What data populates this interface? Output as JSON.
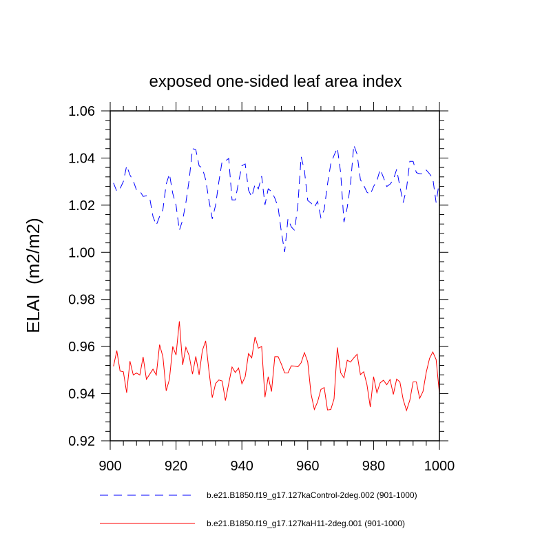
{
  "chart_data": {
    "type": "line",
    "title": "exposed one-sided leaf area index",
    "xlabel": "",
    "ylabel": "ELAI  (m2/m2)",
    "xlim": [
      900,
      1000
    ],
    "ylim": [
      0.92,
      1.06
    ],
    "xticks": [
      "900",
      "920",
      "940",
      "960",
      "980",
      "1000"
    ],
    "yticks": [
      "0.92",
      "0.94",
      "0.96",
      "0.98",
      "1.00",
      "1.02",
      "1.04",
      "1.06"
    ],
    "grid": false,
    "legend_position": "bottom",
    "x_start": 901,
    "x_step": 1,
    "series": [
      {
        "name": "b.e21.B1850.f19_g17.127kaControl-2deg.002 (901-1000)",
        "color": "#0000ff",
        "style": "dashed",
        "values": [
          1.0294,
          1.0258,
          1.027,
          1.03,
          1.0367,
          1.0328,
          1.0303,
          1.0264,
          1.026,
          1.0237,
          1.024,
          1.023,
          1.0152,
          1.0115,
          1.0152,
          1.0181,
          1.0289,
          1.0333,
          1.025,
          1.02,
          1.0093,
          1.0137,
          1.0211,
          1.0308,
          1.044,
          1.0435,
          1.0367,
          1.0357,
          1.0308,
          1.022,
          1.0142,
          1.02,
          1.0298,
          1.0386,
          1.0388,
          1.0398,
          1.0222,
          1.0222,
          1.0298,
          1.0367,
          1.0375,
          1.0264,
          1.0235,
          1.0289,
          1.0269,
          1.0323,
          1.0201,
          1.0269,
          1.0258,
          1.023,
          1.0191,
          1.0084,
          1.0001,
          1.0142,
          1.0108,
          1.0093,
          1.0201,
          1.0406,
          1.0347,
          1.022,
          1.0209,
          1.0191,
          1.0216,
          1.0147,
          1.0181,
          1.0289,
          1.0377,
          1.0411,
          1.0443,
          1.0338,
          1.0128,
          1.0191,
          1.0289,
          1.0455,
          1.0416,
          1.0308,
          1.0284,
          1.0255,
          1.0245,
          1.0279,
          1.0303,
          1.0352,
          1.0318,
          1.0279,
          1.0289,
          1.0308,
          1.0352,
          1.0279,
          1.0211,
          1.0269,
          1.0386,
          1.0386,
          1.0338,
          1.0333,
          1.0333,
          1.0349,
          1.0333,
          1.0313,
          1.0211,
          1.0303
        ]
      },
      {
        "name": "b.e21.B1850.f19_g17.127kaH11-2deg.001 (901-1000)",
        "color": "#ff0000",
        "style": "solid",
        "values": [
          0.9516,
          0.9583,
          0.9496,
          0.9493,
          0.9404,
          0.9538,
          0.9479,
          0.9488,
          0.9479,
          0.9556,
          0.9461,
          0.9483,
          0.9504,
          0.9479,
          0.9608,
          0.9557,
          0.9412,
          0.9461,
          0.96,
          0.9564,
          0.9707,
          0.9522,
          0.9597,
          0.9561,
          0.9483,
          0.9558,
          0.948,
          0.9583,
          0.9624,
          0.9496,
          0.9383,
          0.9443,
          0.9458,
          0.9454,
          0.9371,
          0.9443,
          0.9513,
          0.949,
          0.9509,
          0.9442,
          0.9472,
          0.957,
          0.9552,
          0.9641,
          0.9593,
          0.96,
          0.9385,
          0.9472,
          0.9409,
          0.9557,
          0.9557,
          0.9525,
          0.9488,
          0.9488,
          0.9518,
          0.9517,
          0.9514,
          0.9531,
          0.9574,
          0.9535,
          0.9399,
          0.9333,
          0.9365,
          0.9418,
          0.9426,
          0.9331,
          0.9333,
          0.9378,
          0.9596,
          0.9489,
          0.9467,
          0.9542,
          0.9534,
          0.9552,
          0.9567,
          0.9481,
          0.9493,
          0.9438,
          0.9343,
          0.9472,
          0.9404,
          0.9446,
          0.9457,
          0.9438,
          0.946,
          0.9397,
          0.9462,
          0.945,
          0.9375,
          0.9329,
          0.9372,
          0.945,
          0.945,
          0.938,
          0.9409,
          0.9491,
          0.955,
          0.9577,
          0.9545,
          0.9401
        ]
      }
    ]
  }
}
